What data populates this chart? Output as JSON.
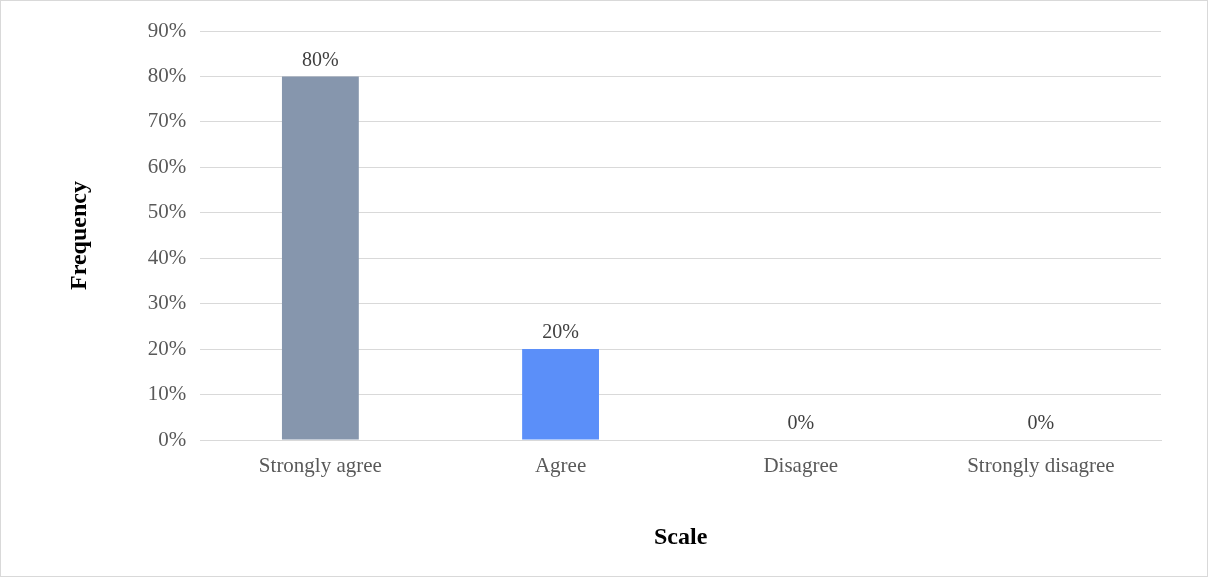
{
  "chart_data": {
    "type": "bar",
    "xlabel": "Scale",
    "ylabel": "Frequency",
    "categories": [
      "Strongly agree",
      "Agree",
      "Disagree",
      "Strongly disagree"
    ],
    "values": [
      80,
      20,
      0,
      0
    ],
    "colors": [
      "#8696ad",
      "#5b8ff9",
      "#5b8ff9",
      "#5b8ff9"
    ],
    "value_labels": [
      "80%",
      "20%",
      "0%",
      "0%"
    ],
    "ylim": [
      0,
      90
    ],
    "yticks": [
      {
        "value": 0,
        "label": "0%"
      },
      {
        "value": 10,
        "label": "10%"
      },
      {
        "value": 20,
        "label": "20%"
      },
      {
        "value": 30,
        "label": "30%"
      },
      {
        "value": 40,
        "label": "40%"
      },
      {
        "value": 50,
        "label": "50%"
      },
      {
        "value": 60,
        "label": "60%"
      },
      {
        "value": 70,
        "label": "70%"
      },
      {
        "value": 80,
        "label": "80%"
      },
      {
        "value": 90,
        "label": "90%"
      }
    ],
    "grid": "y",
    "legend": false
  }
}
